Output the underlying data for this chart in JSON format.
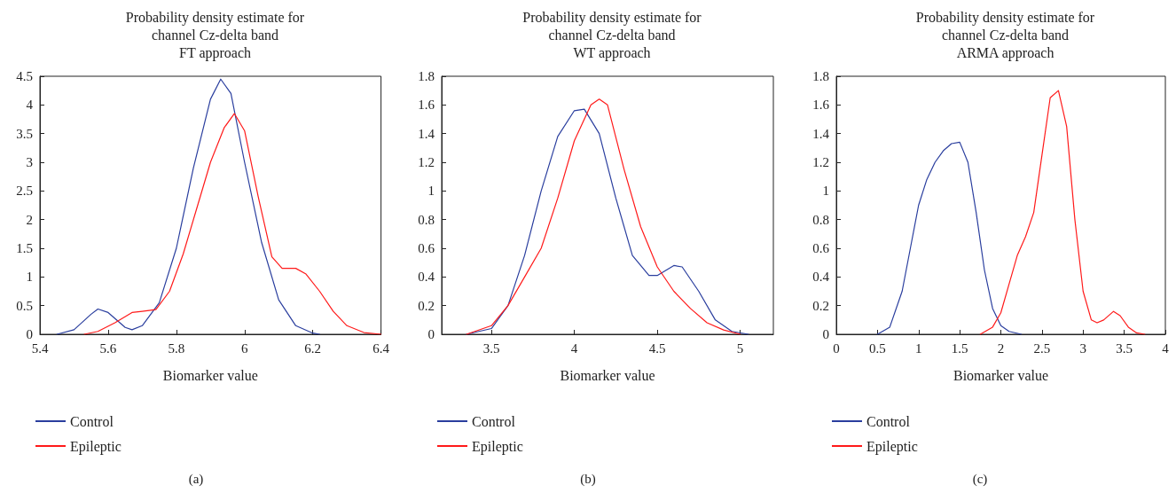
{
  "chart_data": [
    {
      "type": "line",
      "title": "Probability density estimate for\nchannel Cz-delta band\nFT approach",
      "xlabel": "Biomarker value",
      "annotations": [
        "(a)"
      ],
      "legend": "bottom left",
      "grid": false,
      "marker": "none",
      "line_style": "solid",
      "xlim": [
        5.4,
        6.4
      ],
      "xticks": [
        5.4,
        5.6,
        5.8,
        6,
        6.2,
        6.4
      ],
      "ylim": [
        0,
        4.5
      ],
      "yticks": [
        0,
        0.5,
        1,
        1.5,
        2,
        2.5,
        3,
        3.5,
        4,
        4.5
      ],
      "series": [
        {
          "name": "Control",
          "color": "#2a3e9e",
          "x": [
            5.45,
            5.5,
            5.55,
            5.57,
            5.6,
            5.65,
            5.67,
            5.7,
            5.75,
            5.8,
            5.85,
            5.9,
            5.93,
            5.96,
            6.0,
            6.05,
            6.1,
            6.15,
            6.2,
            6.22
          ],
          "values": [
            0,
            0.08,
            0.35,
            0.44,
            0.38,
            0.12,
            0.08,
            0.15,
            0.55,
            1.5,
            2.9,
            4.1,
            4.45,
            4.2,
            3.0,
            1.6,
            0.6,
            0.15,
            0.02,
            0
          ]
        },
        {
          "name": "Epileptic",
          "color": "#ff1a1a",
          "x": [
            5.53,
            5.57,
            5.62,
            5.67,
            5.7,
            5.74,
            5.78,
            5.82,
            5.86,
            5.9,
            5.94,
            5.97,
            6.0,
            6.04,
            6.08,
            6.11,
            6.15,
            6.18,
            6.22,
            6.26,
            6.3,
            6.35,
            6.4
          ],
          "values": [
            0,
            0.05,
            0.2,
            0.38,
            0.4,
            0.43,
            0.75,
            1.4,
            2.2,
            3.0,
            3.6,
            3.85,
            3.55,
            2.4,
            1.35,
            1.15,
            1.15,
            1.05,
            0.75,
            0.4,
            0.15,
            0.03,
            0
          ]
        }
      ]
    },
    {
      "type": "line",
      "title": "Probability density estimate for\nchannel Cz-delta band\nWT approach",
      "xlabel": "Biomarker value",
      "annotations": [
        "(b)"
      ],
      "legend": "bottom left",
      "grid": false,
      "marker": "none",
      "line_style": "solid",
      "xlim": [
        3.2,
        5.2
      ],
      "xticks": [
        3.5,
        4,
        4.5,
        5
      ],
      "ylim": [
        0,
        1.8
      ],
      "yticks": [
        0,
        0.2,
        0.4,
        0.6,
        0.8,
        1,
        1.2,
        1.4,
        1.6,
        1.8
      ],
      "series": [
        {
          "name": "Control",
          "color": "#2a3e9e",
          "x": [
            3.35,
            3.5,
            3.6,
            3.7,
            3.8,
            3.9,
            4.0,
            4.06,
            4.15,
            4.25,
            4.35,
            4.45,
            4.5,
            4.6,
            4.65,
            4.75,
            4.85,
            4.95,
            5.05
          ],
          "values": [
            0,
            0.04,
            0.2,
            0.55,
            1.0,
            1.38,
            1.56,
            1.57,
            1.4,
            0.95,
            0.55,
            0.41,
            0.41,
            0.48,
            0.47,
            0.3,
            0.1,
            0.02,
            0
          ]
        },
        {
          "name": "Epileptic",
          "color": "#ff1a1a",
          "x": [
            3.35,
            3.5,
            3.6,
            3.7,
            3.8,
            3.9,
            4.0,
            4.1,
            4.15,
            4.2,
            4.3,
            4.4,
            4.5,
            4.6,
            4.7,
            4.8,
            4.9,
            5.0
          ],
          "values": [
            0,
            0.06,
            0.2,
            0.4,
            0.6,
            0.95,
            1.35,
            1.6,
            1.64,
            1.6,
            1.15,
            0.75,
            0.47,
            0.3,
            0.18,
            0.08,
            0.03,
            0
          ]
        }
      ]
    },
    {
      "type": "line",
      "title": "Probability density estimate for\nchannel Cz-delta band\nARMA approach",
      "xlabel": "Biomarker value",
      "annotations": [
        "(c)"
      ],
      "legend": "bottom left",
      "grid": false,
      "marker": "none",
      "line_style": "solid",
      "xlim": [
        0,
        4
      ],
      "xticks": [
        0,
        0.5,
        1,
        1.5,
        2,
        2.5,
        3,
        3.5,
        4
      ],
      "ylim": [
        0,
        1.8
      ],
      "yticks": [
        0,
        0.2,
        0.4,
        0.6,
        0.8,
        1,
        1.2,
        1.4,
        1.6,
        1.8
      ],
      "series": [
        {
          "name": "Control",
          "color": "#2a3e9e",
          "x": [
            0.5,
            0.65,
            0.8,
            0.9,
            1.0,
            1.1,
            1.2,
            1.3,
            1.4,
            1.5,
            1.6,
            1.7,
            1.8,
            1.9,
            2.0,
            2.1,
            2.25
          ],
          "values": [
            0,
            0.05,
            0.3,
            0.6,
            0.9,
            1.08,
            1.2,
            1.28,
            1.33,
            1.34,
            1.2,
            0.85,
            0.45,
            0.18,
            0.06,
            0.02,
            0
          ]
        },
        {
          "name": "Epileptic",
          "color": "#ff1a1a",
          "x": [
            1.75,
            1.9,
            2.0,
            2.1,
            2.2,
            2.3,
            2.4,
            2.5,
            2.6,
            2.7,
            2.8,
            2.9,
            3.0,
            3.1,
            3.17,
            3.25,
            3.37,
            3.45,
            3.55,
            3.65,
            3.75
          ],
          "values": [
            0,
            0.05,
            0.15,
            0.35,
            0.55,
            0.68,
            0.85,
            1.25,
            1.65,
            1.7,
            1.45,
            0.8,
            0.3,
            0.1,
            0.08,
            0.1,
            0.16,
            0.13,
            0.05,
            0.01,
            0
          ]
        }
      ]
    }
  ]
}
